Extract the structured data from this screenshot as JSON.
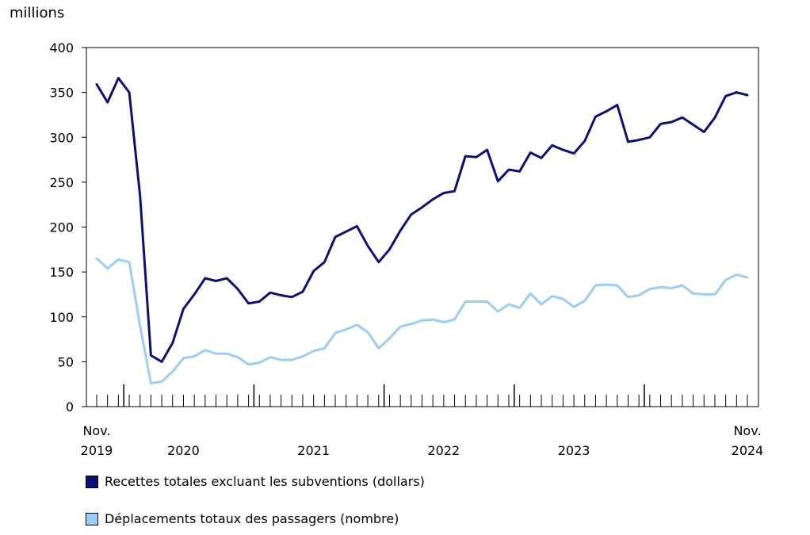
{
  "chart_data": {
    "type": "line",
    "unit_label": "millions",
    "ylim": [
      0,
      400
    ],
    "yticks": [
      0,
      50,
      100,
      150,
      200,
      250,
      300,
      350,
      400
    ],
    "x_start": "2019-11",
    "x_end": "2024-11",
    "x_labels": [
      {
        "month_index": 0,
        "line1": "Nov.",
        "line2": "2019"
      },
      {
        "month_index": 8,
        "line1": "",
        "line2": "2020"
      },
      {
        "month_index": 20,
        "line1": "",
        "line2": "2021"
      },
      {
        "month_index": 32,
        "line1": "",
        "line2": "2022"
      },
      {
        "month_index": 44,
        "line1": "",
        "line2": "2023"
      },
      {
        "month_index": 60,
        "line1": "Nov.",
        "line2": "2024"
      }
    ],
    "year_boundaries": [
      2,
      14,
      26,
      38,
      50
    ],
    "series": [
      {
        "name": "Recettes totales excluant les subventions (dollars)",
        "color": "#0b0f7a",
        "values": [
          359,
          339,
          366,
          350,
          235,
          57,
          50,
          71,
          109,
          125,
          143,
          140,
          143,
          131,
          115,
          117,
          127,
          124,
          122,
          128,
          151,
          161,
          189,
          195,
          201,
          179,
          161,
          175,
          196,
          214,
          222,
          231,
          238,
          240,
          279,
          278,
          286,
          251,
          264,
          262,
          283,
          277,
          291,
          286,
          282,
          296,
          323,
          329,
          336,
          295,
          297,
          300,
          315,
          317,
          322,
          314,
          306,
          322,
          346,
          350,
          347
        ]
      },
      {
        "name": "Déplacements totaux des passagers (nombre)",
        "color": "#99ccff",
        "values": [
          165,
          154,
          164,
          161,
          90,
          26,
          28,
          39,
          54,
          56,
          63,
          59,
          59,
          55,
          47,
          49,
          55,
          52,
          52,
          56,
          62,
          65,
          82,
          86,
          91,
          83,
          65,
          76,
          89,
          92,
          96,
          97,
          94,
          97,
          117,
          117,
          117,
          106,
          114,
          110,
          126,
          114,
          123,
          120,
          111,
          118,
          135,
          136,
          135,
          122,
          124,
          131,
          133,
          132,
          135,
          126,
          125,
          125,
          141,
          147,
          144
        ]
      }
    ]
  }
}
